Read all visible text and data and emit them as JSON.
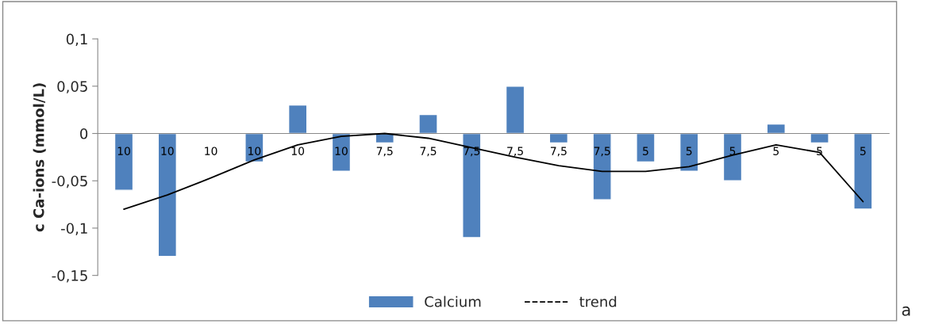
{
  "chart_data": {
    "type": "bar",
    "ylabel": "c Ca-ions (mmol/L)",
    "categories": [
      "10",
      "10",
      "10",
      "10",
      "10",
      "10",
      "7,5",
      "7,5",
      "7,5",
      "7,5",
      "7,5",
      "7,5",
      "5",
      "5",
      "5",
      "5",
      "5",
      "5"
    ],
    "series": [
      {
        "name": "Calcium",
        "color": "#4f81bd",
        "values": [
          -0.06,
          -0.13,
          null,
          -0.03,
          0.03,
          -0.04,
          -0.01,
          0.02,
          -0.11,
          0.05,
          -0.01,
          -0.07,
          -0.03,
          -0.04,
          -0.05,
          0.01,
          -0.01,
          -0.08
        ]
      },
      {
        "name": "trend",
        "type": "line",
        "color": "#000000",
        "line_style": "solid",
        "values": [
          -0.08,
          -0.065,
          -0.047,
          -0.028,
          -0.012,
          -0.003,
          0.0,
          -0.005,
          -0.015,
          -0.025,
          -0.034,
          -0.04,
          -0.04,
          -0.035,
          -0.023,
          -0.012,
          -0.02,
          -0.072
        ]
      }
    ],
    "ylim": [
      -0.15,
      0.1
    ],
    "yticks": [
      {
        "value": -0.15,
        "label": "-0,15"
      },
      {
        "value": -0.1,
        "label": "-0,1"
      },
      {
        "value": -0.05,
        "label": "-0,05"
      },
      {
        "value": 0,
        "label": "0"
      },
      {
        "value": 0.05,
        "label": "0,05"
      },
      {
        "value": 0.1,
        "label": "0,1"
      }
    ],
    "grid": false,
    "legend": "bottom",
    "marker": "none",
    "annotations": [
      "a"
    ]
  }
}
